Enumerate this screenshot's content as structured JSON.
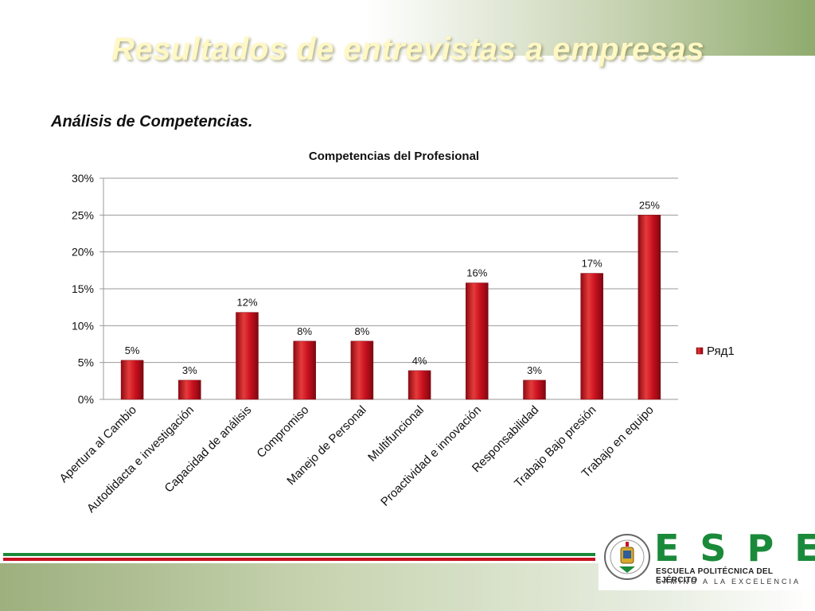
{
  "slide": {
    "title": "Resultados de entrevistas a empresas",
    "section_heading": "Análisis de Competencias."
  },
  "logo": {
    "wordmark": "ESPE",
    "subtitle": "ESCUELA POLITÉCNICA DEL EJÉRCITO",
    "tagline": "CAMINO A LA EXCELENCIA",
    "seal_text": "ESCUELA POLITÉCNICA DEL EJÉRCITO · ECUADOR"
  },
  "colors": {
    "bar": "#c8101e",
    "bar_light": "#e53b3b",
    "bar_dark": "#8e0a12",
    "green": "#1a8a3a",
    "footer_red": "#c8101e",
    "footer_green": "#1a8a3a"
  },
  "chart_data": {
    "type": "bar",
    "title": "Competencias del Profesional",
    "categories": [
      "Apertura al Cambio",
      "Autodidacta e investigación",
      "Capacidad de análisis",
      "Compromiso",
      "Manejo de Personal",
      "Multifuncional",
      "Proactividad e innovación",
      "Responsabilidad",
      "Trabajo Bajo presión",
      "Trabajo en equipo"
    ],
    "series": [
      {
        "name": "Ряд1",
        "values": [
          0.053,
          0.026,
          0.118,
          0.079,
          0.079,
          0.039,
          0.158,
          0.026,
          0.171,
          0.25
        ]
      }
    ],
    "data_labels": [
      "5%",
      "3%",
      "12%",
      "8%",
      "8%",
      "4%",
      "16%",
      "3%",
      "17%",
      "25%"
    ],
    "ylim": [
      0,
      0.3
    ],
    "yticks": [
      0,
      0.05,
      0.1,
      0.15,
      0.2,
      0.25,
      0.3
    ],
    "ytick_labels": [
      "0%",
      "5%",
      "10%",
      "15%",
      "20%",
      "25%",
      "30%"
    ],
    "grid": true,
    "legend_position": "right"
  }
}
